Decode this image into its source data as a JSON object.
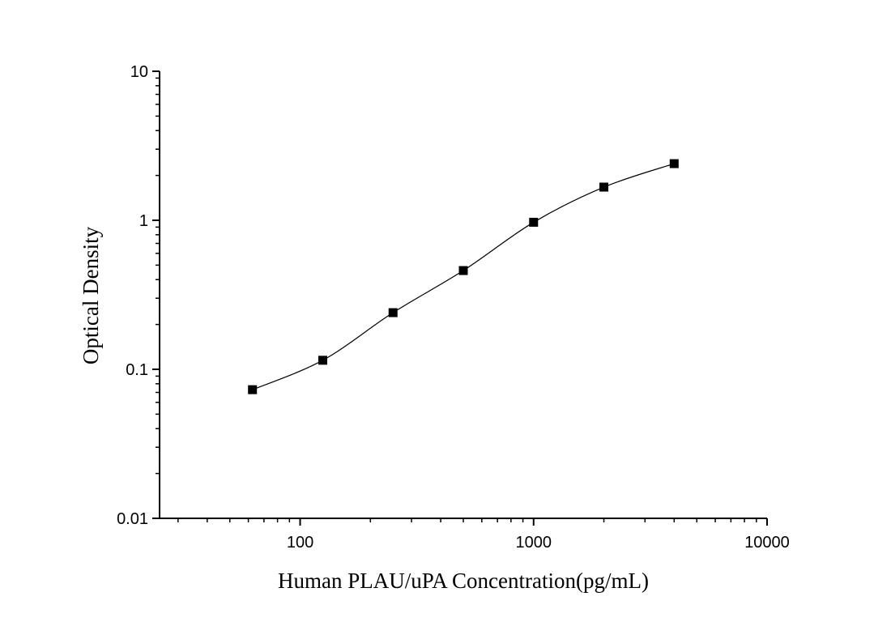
{
  "chart_data": {
    "type": "scatter",
    "xlabel": "Human PLAU/uPA Concentration(pg/mL)",
    "ylabel": "Optical Density",
    "xscale": "log",
    "yscale": "log",
    "xlim": [
      25,
      10000
    ],
    "ylim": [
      0.01,
      10
    ],
    "x_ticks": [
      100,
      1000,
      10000
    ],
    "x_tick_labels": [
      "100",
      "1000",
      "10000"
    ],
    "y_ticks": [
      0.01,
      0.1,
      1,
      10
    ],
    "y_tick_labels": [
      "0.01",
      "0.1",
      "1",
      "10"
    ],
    "grid": false,
    "legend": "none",
    "line_connected": true,
    "marker": "square",
    "series": [
      {
        "x": [
          62.5,
          125,
          250,
          500,
          1000,
          2000,
          4000
        ],
        "y": [
          0.073,
          0.115,
          0.24,
          0.46,
          0.97,
          1.67,
          2.4
        ]
      }
    ]
  }
}
